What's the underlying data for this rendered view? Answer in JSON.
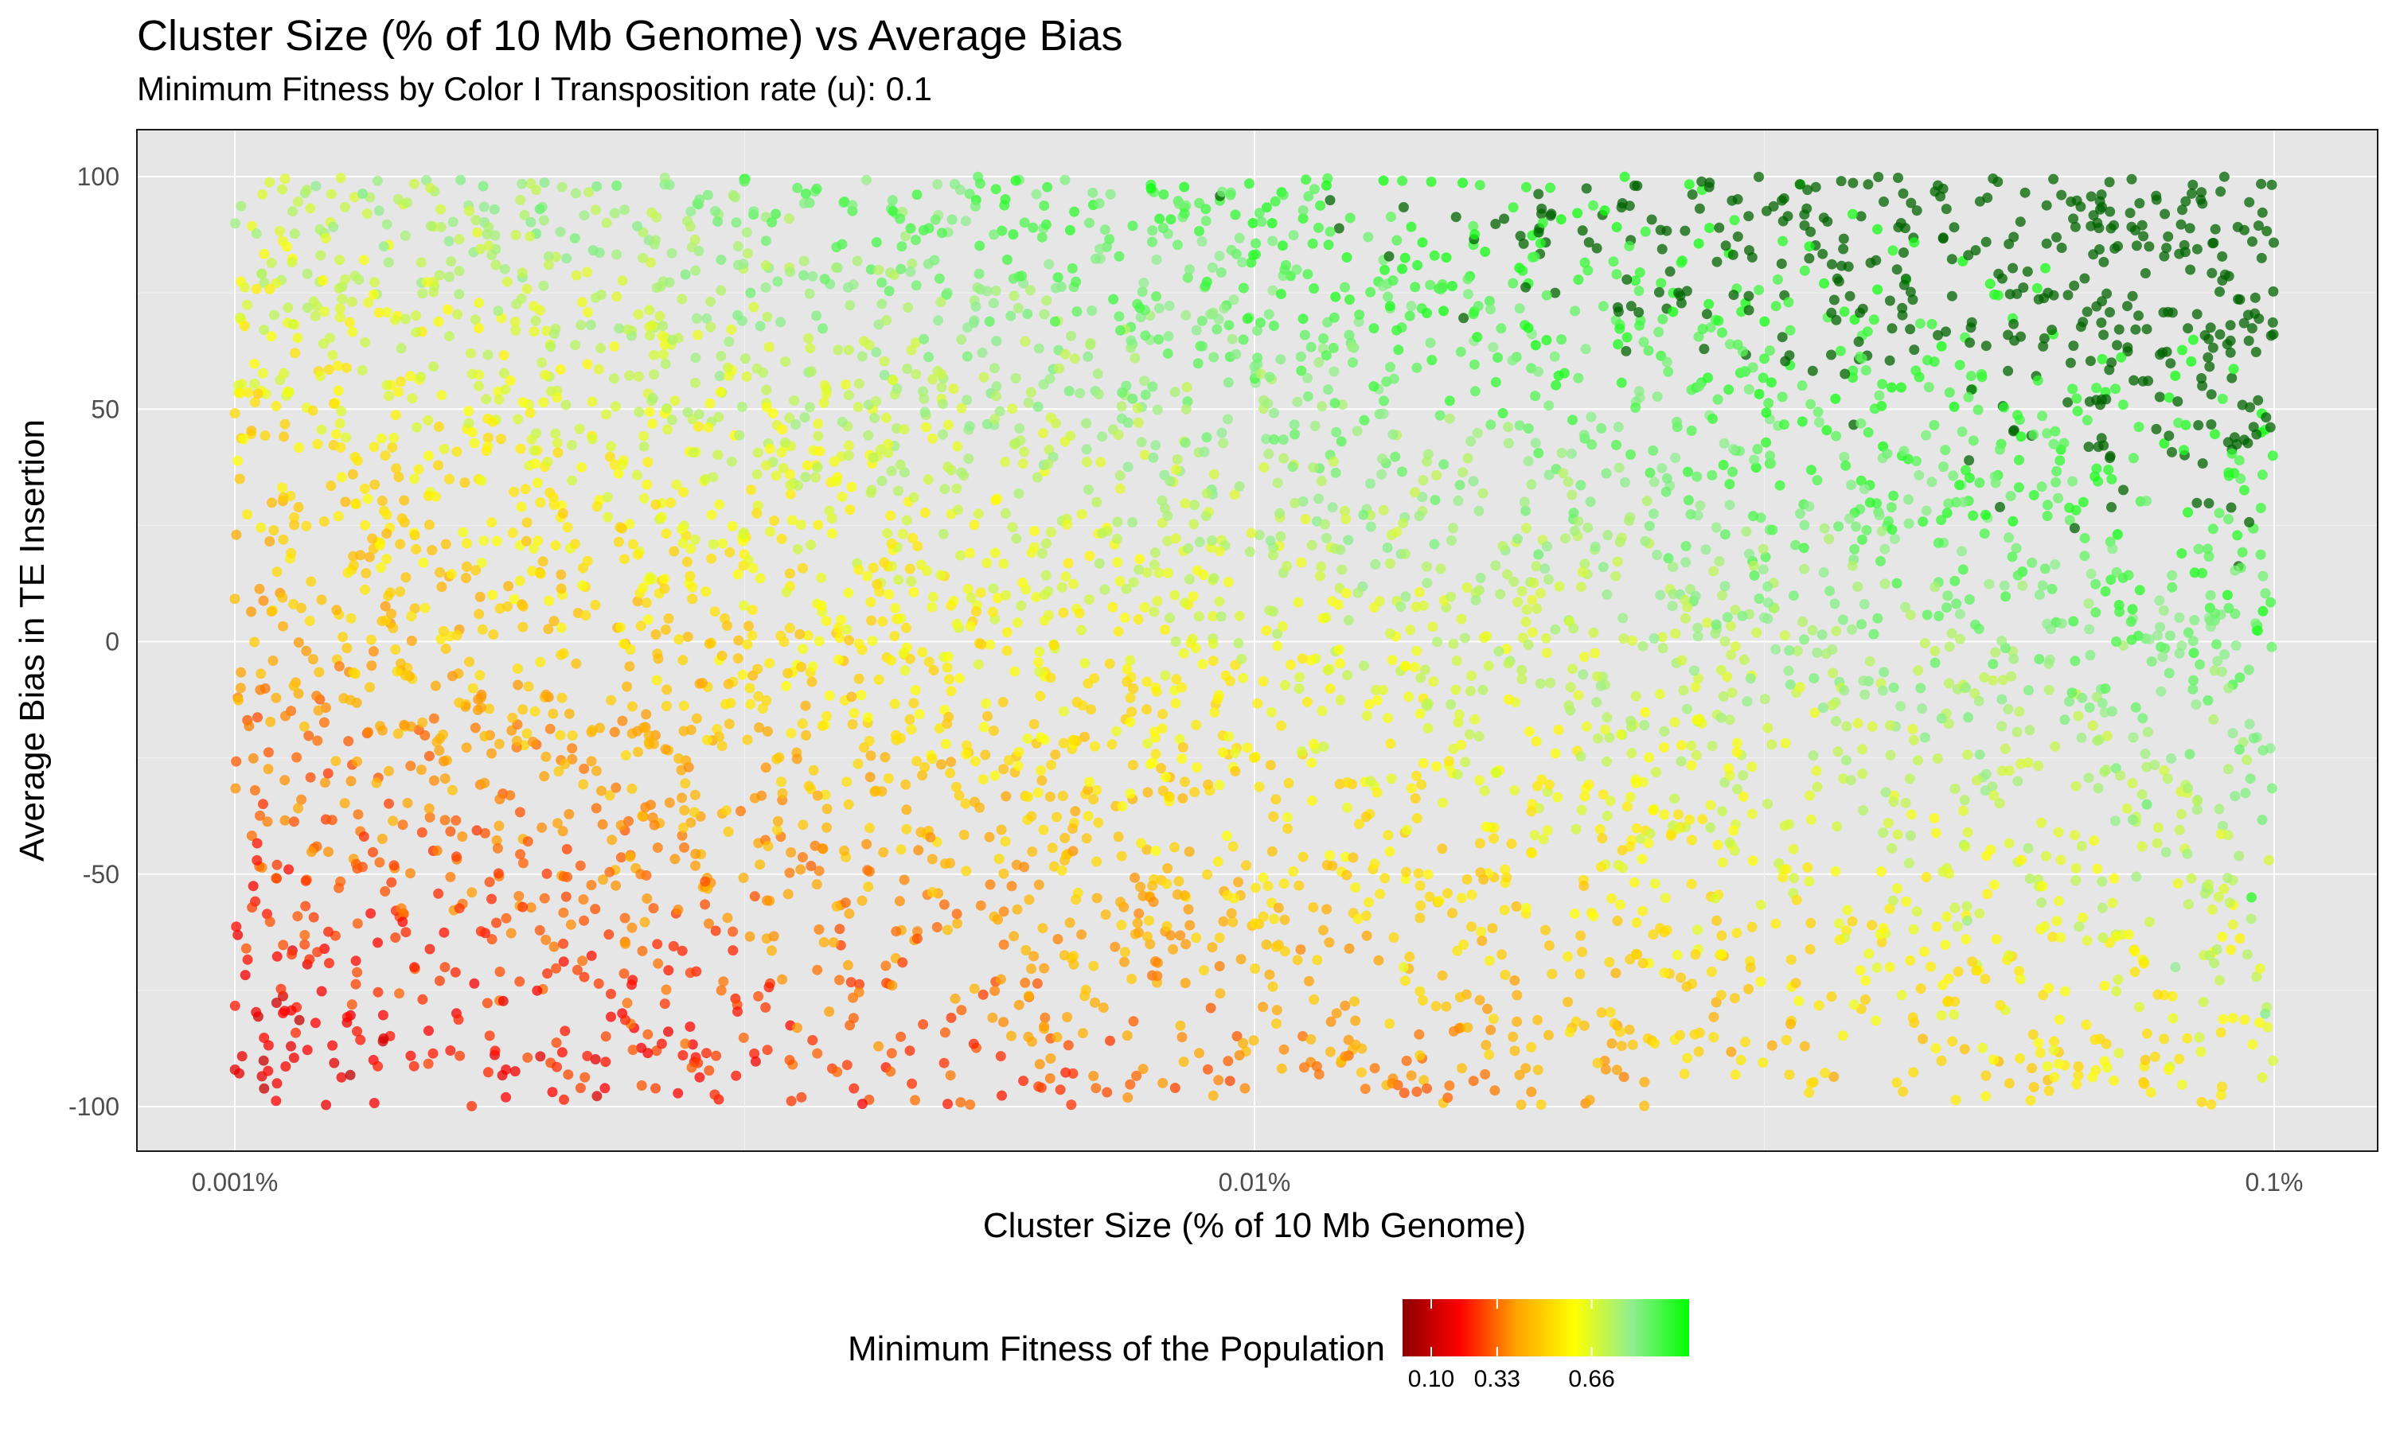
{
  "chart_data": {
    "type": "scatter",
    "title": "Cluster Size (% of 10 Mb Genome) vs Average Bias",
    "subtitle": "Minimum Fitness by Color I Transposition rate (u): 0.1",
    "xlabel": "Cluster Size (% of 10 Mb Genome)",
    "ylabel": "Average Bias in TE Insertion",
    "x_scale": "log10",
    "xlim": [
      0.001,
      0.1
    ],
    "ylim": [
      -100,
      100
    ],
    "x_ticks": [
      {
        "value": 0.001,
        "label": "0.001%"
      },
      {
        "value": 0.01,
        "label": "0.01%"
      },
      {
        "value": 0.1,
        "label": "0.1%"
      }
    ],
    "y_ticks": [
      {
        "value": 100,
        "label": "100"
      },
      {
        "value": 50,
        "label": "50"
      },
      {
        "value": 0,
        "label": "0"
      },
      {
        "value": -50,
        "label": "-50"
      },
      {
        "value": -100,
        "label": "-100"
      }
    ],
    "grid": true,
    "legend": {
      "title": "Minimum Fitness of the Population",
      "position": "bottom",
      "ticks": [
        {
          "value": 0.1,
          "label": "0.10"
        },
        {
          "value": 0.33,
          "label": "0.33"
        },
        {
          "value": 0.66,
          "label": "0.66"
        }
      ],
      "range": [
        0.0,
        1.0
      ],
      "colors": [
        "#8b0000",
        "#ff0000",
        "#ffa500",
        "#ffff00",
        "#90ee90",
        "#00ff00"
      ]
    },
    "high_fitness_color": "#006400",
    "point_count": 5000,
    "series": [
      {
        "values": [
          {
            "x": 0.0011,
            "y": -95,
            "fitness": 0.18
          },
          {
            "x": 0.0012,
            "y": -82,
            "fitness": 0.2
          },
          {
            "x": 0.0015,
            "y": -70,
            "fitness": 0.23
          },
          {
            "x": 0.0018,
            "y": -88,
            "fitness": 0.22
          },
          {
            "x": 0.0022,
            "y": -60,
            "fitness": 0.3
          },
          {
            "x": 0.0011,
            "y": -48,
            "fitness": 0.27
          },
          {
            "x": 0.0013,
            "y": -30,
            "fitness": 0.38
          },
          {
            "x": 0.0016,
            "y": -20,
            "fitness": 0.45
          },
          {
            "x": 0.002,
            "y": -40,
            "fitness": 0.37
          },
          {
            "x": 0.0025,
            "y": -50,
            "fitness": 0.35
          },
          {
            "x": 0.003,
            "y": -75,
            "fitness": 0.33
          },
          {
            "x": 0.0035,
            "y": -90,
            "fitness": 0.3
          },
          {
            "x": 0.0011,
            "y": 15,
            "fitness": 0.52
          },
          {
            "x": 0.0013,
            "y": 5,
            "fitness": 0.53
          },
          {
            "x": 0.0015,
            "y": 35,
            "fitness": 0.62
          },
          {
            "x": 0.0012,
            "y": 70,
            "fitness": 0.7
          },
          {
            "x": 0.0014,
            "y": 85,
            "fitness": 0.8
          },
          {
            "x": 0.002,
            "y": 60,
            "fitness": 0.7
          },
          {
            "x": 0.0028,
            "y": 20,
            "fitness": 0.62
          },
          {
            "x": 0.0032,
            "y": -10,
            "fitness": 0.54
          },
          {
            "x": 0.004,
            "y": -35,
            "fitness": 0.5
          },
          {
            "x": 0.005,
            "y": -62,
            "fitness": 0.45
          },
          {
            "x": 0.006,
            "y": -85,
            "fitness": 0.4
          },
          {
            "x": 0.004,
            "y": 40,
            "fitness": 0.7
          },
          {
            "x": 0.005,
            "y": 75,
            "fitness": 0.82
          },
          {
            "x": 0.0045,
            "y": 5,
            "fitness": 0.62
          },
          {
            "x": 0.0065,
            "y": -15,
            "fitness": 0.64
          },
          {
            "x": 0.007,
            "y": 30,
            "fitness": 0.72
          },
          {
            "x": 0.008,
            "y": -45,
            "fitness": 0.6
          },
          {
            "x": 0.009,
            "y": -92,
            "fitness": 0.3
          },
          {
            "x": 0.011,
            "y": 80,
            "fitness": 0.84
          },
          {
            "x": 0.012,
            "y": 20,
            "fitness": 0.74
          },
          {
            "x": 0.013,
            "y": -30,
            "fitness": 0.68
          },
          {
            "x": 0.014,
            "y": -70,
            "fitness": 0.64
          },
          {
            "x": 0.018,
            "y": -88,
            "fitness": 0.45
          },
          {
            "x": 0.02,
            "y": 65,
            "fitness": 0.9
          },
          {
            "x": 0.025,
            "y": 10,
            "fitness": 0.8
          },
          {
            "x": 0.028,
            "y": -40,
            "fitness": 0.72
          },
          {
            "x": 0.03,
            "y": -90,
            "fitness": 0.55
          },
          {
            "x": 0.035,
            "y": 85,
            "fitness": 0.98
          },
          {
            "x": 0.04,
            "y": 45,
            "fitness": 0.92
          },
          {
            "x": 0.045,
            "y": -10,
            "fitness": 0.84
          },
          {
            "x": 0.05,
            "y": -60,
            "fitness": 0.78
          },
          {
            "x": 0.055,
            "y": -95,
            "fitness": 0.5
          },
          {
            "x": 0.06,
            "y": 75,
            "fitness": 0.99
          },
          {
            "x": 0.065,
            "y": 30,
            "fitness": 0.96
          },
          {
            "x": 0.07,
            "y": 0,
            "fitness": 0.9
          },
          {
            "x": 0.075,
            "y": -35,
            "fitness": 0.86
          },
          {
            "x": 0.08,
            "y": -70,
            "fitness": 0.8
          },
          {
            "x": 0.085,
            "y": 55,
            "fitness": 0.99
          },
          {
            "x": 0.09,
            "y": 10,
            "fitness": 0.97
          },
          {
            "x": 0.095,
            "y": -55,
            "fitness": 0.95
          },
          {
            "x": 0.098,
            "y": -80,
            "fitness": 0.82
          }
        ]
      }
    ]
  }
}
